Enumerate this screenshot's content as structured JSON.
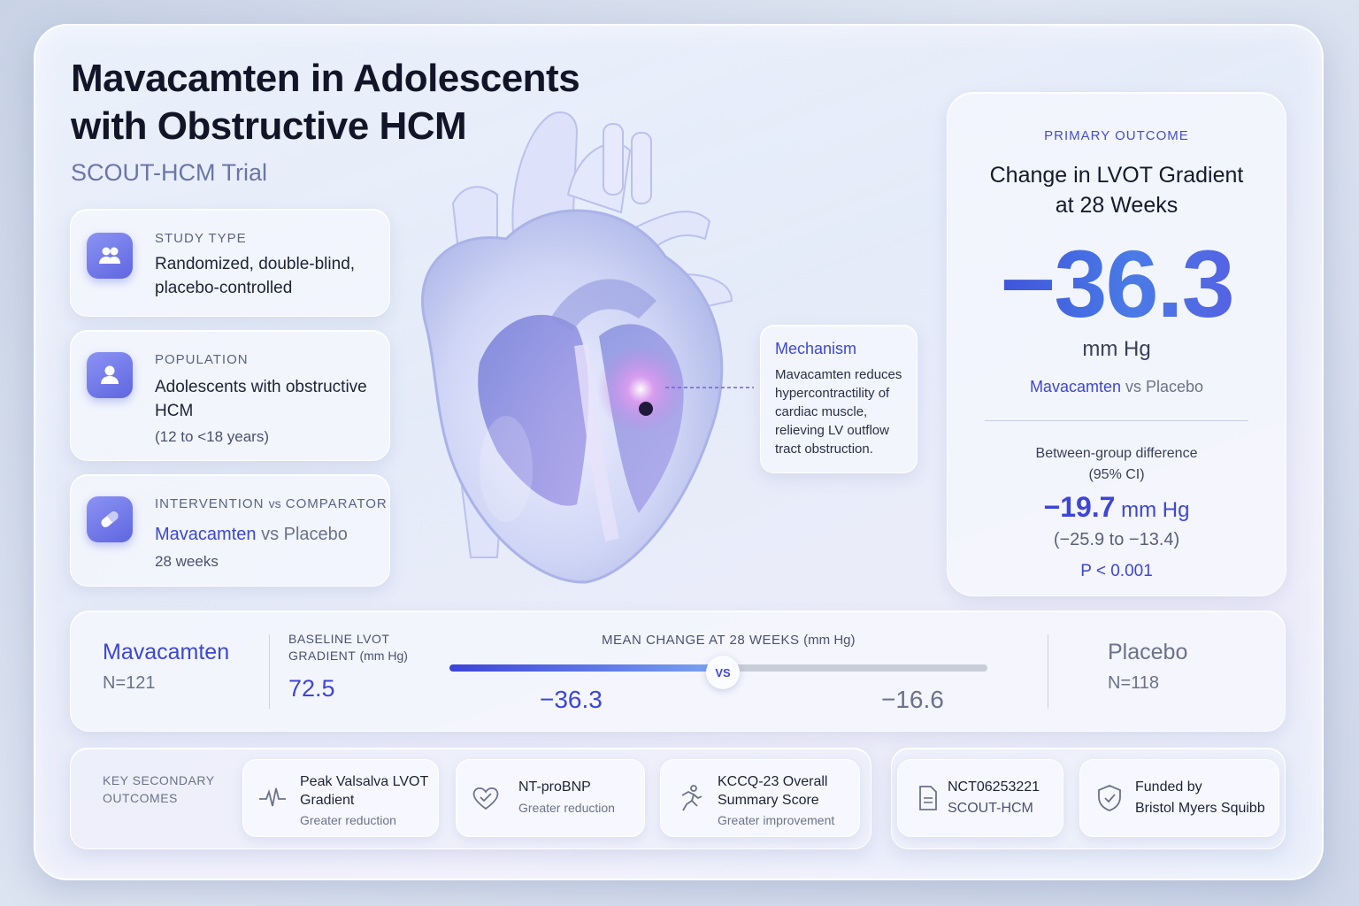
{
  "header": {
    "title": "Mavacamten in Adolescents with Obstructive HCM",
    "subtitle": "SCOUT-HCM Trial"
  },
  "cards": {
    "study_type": {
      "label": "STUDY TYPE",
      "text": "Randomized, double-blind, placebo-controlled",
      "icon": "users-icon"
    },
    "population": {
      "label": "POPULATION",
      "text": "Adolescents with obstructive HCM",
      "note": "(12 to <18 years)",
      "icon": "user-icon"
    },
    "intervention": {
      "label_a": "INTERVENTION",
      "label_vs": "vs",
      "label_b": "COMPARATOR",
      "drug": "Mavacamten",
      "vs": "vs",
      "comparator": "Placebo",
      "duration": "28 weeks",
      "icon": "pill-icon"
    }
  },
  "mechanism": {
    "title": "Mechanism",
    "text": "Mavacamten reduces hypercontractility of cardiac muscle, relieving LV outflow tract obstruction."
  },
  "primary": {
    "label": "PRIMARY OUTCOME",
    "title_line1": "Change in LVOT Gradient",
    "title_line2": "at 28 Weeks",
    "value": "−36.3",
    "unit": "mm Hg",
    "vs_drug": "Mavacamten",
    "vs_rest": "vs Placebo",
    "between_line1": "Between-group difference",
    "between_line2": "(95% CI)",
    "diff_value": "−19.7",
    "diff_unit": "mm Hg",
    "ci": "(−25.9 to −13.4)",
    "p": "P < 0.001"
  },
  "comparison": {
    "drug": {
      "name": "Mavacamten",
      "n": "N=121"
    },
    "baseline_label_1": "BASELINE LVOT",
    "baseline_label_2": "GRADIENT",
    "baseline_unit": "(mm Hg)",
    "baseline_value": "72.5",
    "mean_label": "MEAN CHANGE AT 28 WEEKS",
    "mean_unit": "(mm Hg)",
    "drug_change": "−36.3",
    "placebo_change": "−16.6",
    "vs": "VS",
    "placebo": {
      "name": "Placebo",
      "n": "N=118"
    },
    "bar_fraction": 0.5
  },
  "secondary": {
    "label_1": "KEY SECONDARY",
    "label_2": "OUTCOMES",
    "items": [
      {
        "title_1": "Peak Valsalva LVOT",
        "title_2": "Gradient",
        "sub": "Greater reduction",
        "icon": "pulse-icon"
      },
      {
        "title_1": "NT-proBNP",
        "title_2": "",
        "sub": "Greater reduction",
        "icon": "heart-check-icon"
      },
      {
        "title_1": "KCCQ-23 Overall",
        "title_2": "Summary Score",
        "sub": "Greater improvement",
        "icon": "runner-icon"
      }
    ]
  },
  "registry": {
    "id": "NCT06253221",
    "name": "SCOUT-HCM",
    "icon": "document-icon"
  },
  "funding": {
    "line1": "Funded by",
    "line2": "Bristol Myers Squibb",
    "icon": "shield-check-icon"
  },
  "colors": {
    "accent": "#3d46d6",
    "accent_light": "#6a73ea",
    "text": "#1a1f33",
    "muted": "#6b7289"
  }
}
